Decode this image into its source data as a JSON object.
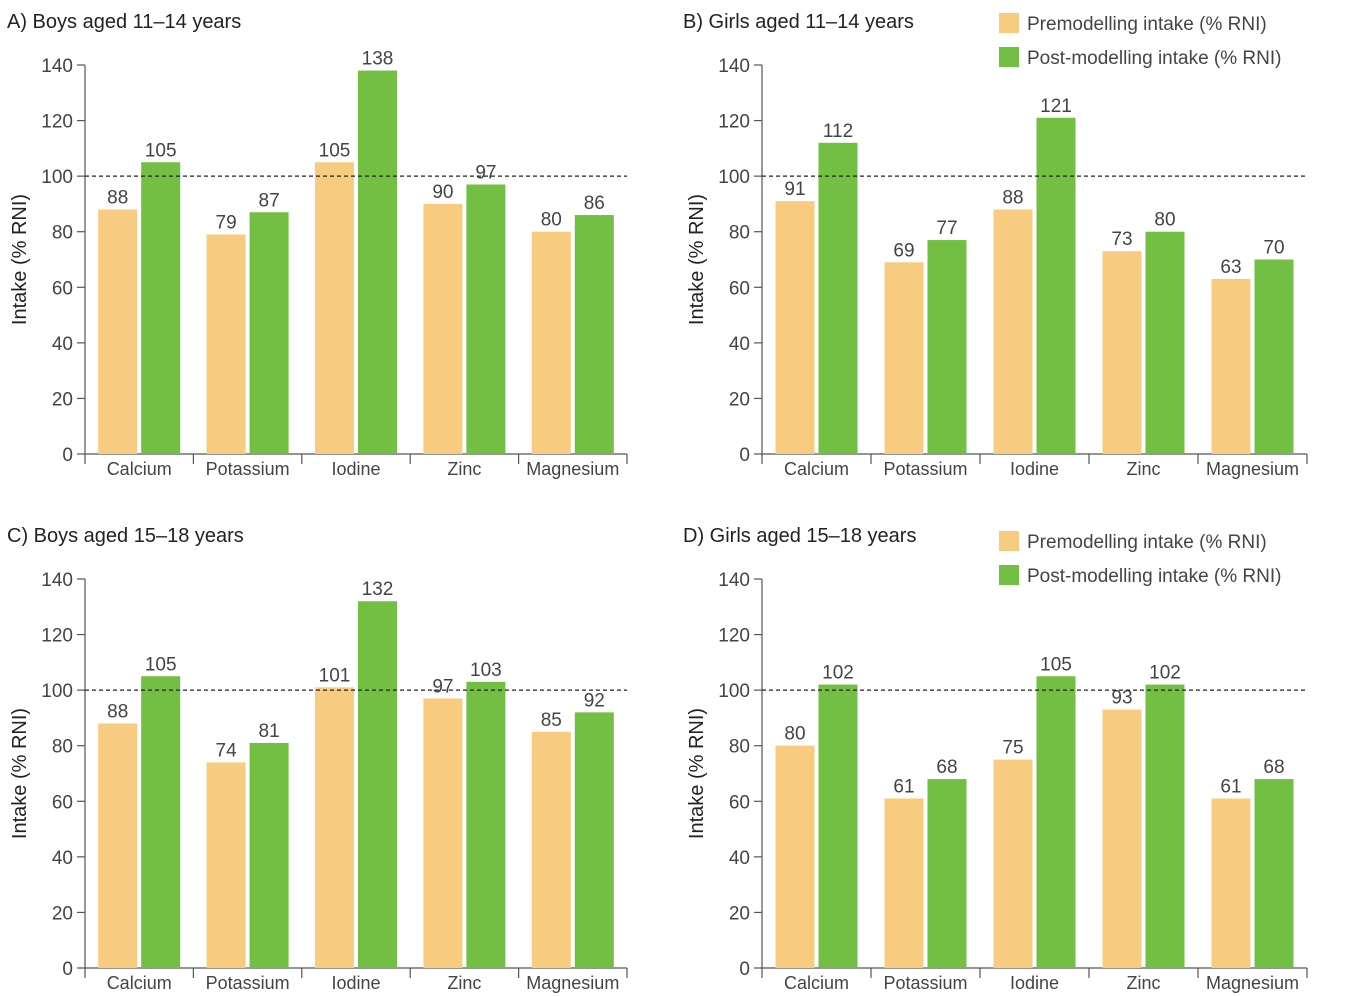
{
  "colors": {
    "pre": "#F8CC80",
    "post": "#72BF44",
    "axis": "#555555",
    "reference": "#222222"
  },
  "legend": {
    "pre_label": "Premodelling intake (% RNI)",
    "post_label": "Post-modelling intake (% RNI)"
  },
  "chart_data": [
    {
      "type": "bar",
      "title": "A) Boys aged 11–14 years",
      "ylabel": "Intake (% RNI)",
      "ylim": [
        0,
        140
      ],
      "yticks": [
        0,
        20,
        40,
        60,
        80,
        100,
        120,
        140
      ],
      "reference_line": 100,
      "categories": [
        "Calcium",
        "Potassium",
        "Iodine",
        "Zinc",
        "Magnesium"
      ],
      "series": [
        {
          "name": "Premodelling intake (% RNI)",
          "values": [
            88,
            79,
            105,
            90,
            80
          ]
        },
        {
          "name": "Post-modelling intake (% RNI)",
          "values": [
            105,
            87,
            138,
            97,
            86
          ]
        }
      ]
    },
    {
      "type": "bar",
      "title": "B) Girls aged 11–14 years",
      "ylabel": "Intake (% RNI)",
      "ylim": [
        0,
        140
      ],
      "yticks": [
        0,
        20,
        40,
        60,
        80,
        100,
        120,
        140
      ],
      "reference_line": 100,
      "legend": "top-right",
      "categories": [
        "Calcium",
        "Potassium",
        "Iodine",
        "Zinc",
        "Magnesium"
      ],
      "series": [
        {
          "name": "Premodelling intake (% RNI)",
          "values": [
            91,
            69,
            88,
            73,
            63
          ]
        },
        {
          "name": "Post-modelling intake (% RNI)",
          "values": [
            112,
            77,
            121,
            80,
            70
          ]
        }
      ]
    },
    {
      "type": "bar",
      "title": "C) Boys aged 15–18 years",
      "ylabel": "Intake (% RNI)",
      "ylim": [
        0,
        140
      ],
      "yticks": [
        0,
        20,
        40,
        60,
        80,
        100,
        120,
        140
      ],
      "reference_line": 100,
      "categories": [
        "Calcium",
        "Potassium",
        "Iodine",
        "Zinc",
        "Magnesium"
      ],
      "series": [
        {
          "name": "Premodelling intake (% RNI)",
          "values": [
            88,
            74,
            101,
            97,
            85
          ]
        },
        {
          "name": "Post-modelling intake (% RNI)",
          "values": [
            105,
            81,
            132,
            103,
            92
          ]
        }
      ]
    },
    {
      "type": "bar",
      "title": "D) Girls aged 15–18 years",
      "ylabel": "Intake (% RNI)",
      "ylim": [
        0,
        140
      ],
      "yticks": [
        0,
        20,
        40,
        60,
        80,
        100,
        120,
        140
      ],
      "reference_line": 100,
      "legend": "top-right",
      "categories": [
        "Calcium",
        "Potassium",
        "Iodine",
        "Zinc",
        "Magnesium"
      ],
      "series": [
        {
          "name": "Premodelling intake (% RNI)",
          "values": [
            80,
            61,
            75,
            93,
            61
          ]
        },
        {
          "name": "Post-modelling intake (% RNI)",
          "values": [
            102,
            68,
            105,
            102,
            68
          ]
        }
      ]
    }
  ]
}
